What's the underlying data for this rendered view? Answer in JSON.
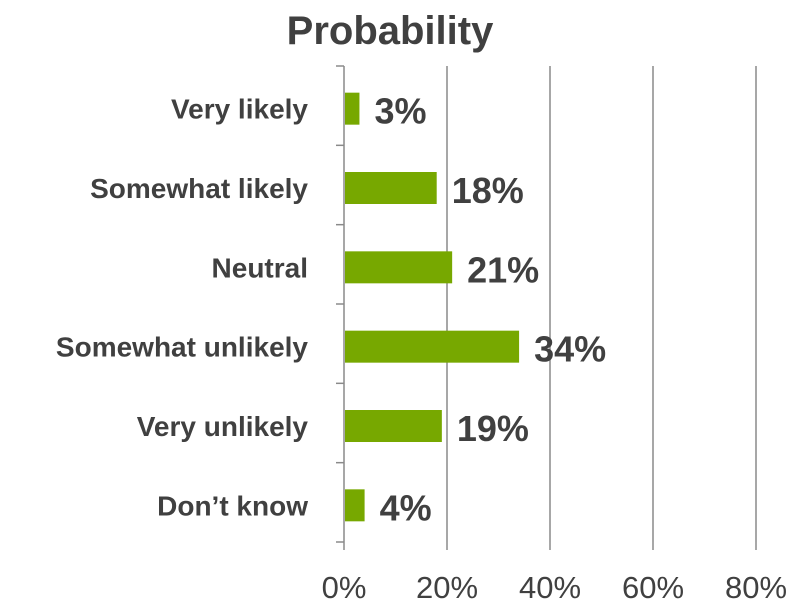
{
  "chart_data": {
    "type": "bar",
    "orientation": "horizontal",
    "title": "Probability",
    "categories": [
      "Very likely",
      "Somewhat likely",
      "Neutral",
      "Somewhat unlikely",
      "Very unlikely",
      "Don’t know"
    ],
    "values": [
      3,
      18,
      21,
      34,
      19,
      4
    ],
    "value_labels": [
      "3%",
      "18%",
      "21%",
      "34%",
      "19%",
      "4%"
    ],
    "x_ticks": [
      0,
      20,
      40,
      60,
      80
    ],
    "x_tick_labels": [
      "0%",
      "20%",
      "40%",
      "60%",
      "80%"
    ],
    "xlim": [
      0,
      80
    ],
    "xlabel": "",
    "ylabel": "",
    "grid": "vertical",
    "legend": "none",
    "colors": {
      "bar": "#77a800",
      "text": "#404040",
      "grid": "#8a8a8a",
      "axis": "#8a8a8a"
    }
  }
}
